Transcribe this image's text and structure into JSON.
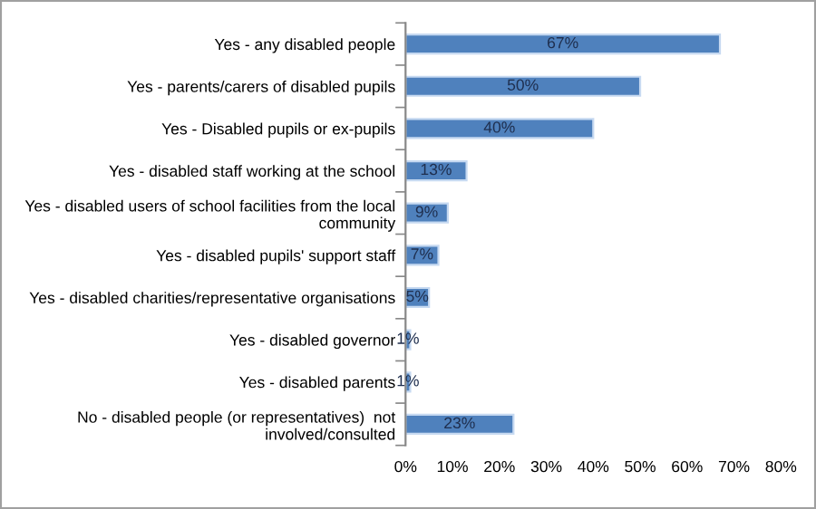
{
  "chart_data": {
    "type": "bar",
    "orientation": "horizontal",
    "categories": [
      "Yes - any disabled people",
      "Yes - parents/carers of disabled pupils",
      "Yes - Disabled pupils or ex-pupils",
      "Yes - disabled staff working at the school",
      "Yes - disabled users of school facilities from the local\ncommunity",
      "Yes - disabled pupils' support staff",
      "Yes - disabled charities/representative organisations",
      "Yes - disabled governor",
      "Yes - disabled parents",
      "No - disabled people (or representatives)  not\ninvolved/consulted"
    ],
    "values": [
      67,
      50,
      40,
      13,
      9,
      7,
      5,
      1,
      1,
      23
    ],
    "value_labels": [
      "67%",
      "50%",
      "40%",
      "13%",
      "9%",
      "7%",
      "5%",
      "1%",
      "1%",
      "23%"
    ],
    "color": "#4f81bd",
    "xlim": [
      0,
      80
    ],
    "xticks": [
      {
        "value": 0,
        "label": "0%"
      },
      {
        "value": 10,
        "label": "10%"
      },
      {
        "value": 20,
        "label": "20%"
      },
      {
        "value": 30,
        "label": "30%"
      },
      {
        "value": 40,
        "label": "40%"
      },
      {
        "value": 50,
        "label": "50%"
      },
      {
        "value": 60,
        "label": "60%"
      },
      {
        "value": 70,
        "label": "70%"
      },
      {
        "value": 80,
        "label": "80%"
      }
    ],
    "grid": false,
    "legend": false
  }
}
